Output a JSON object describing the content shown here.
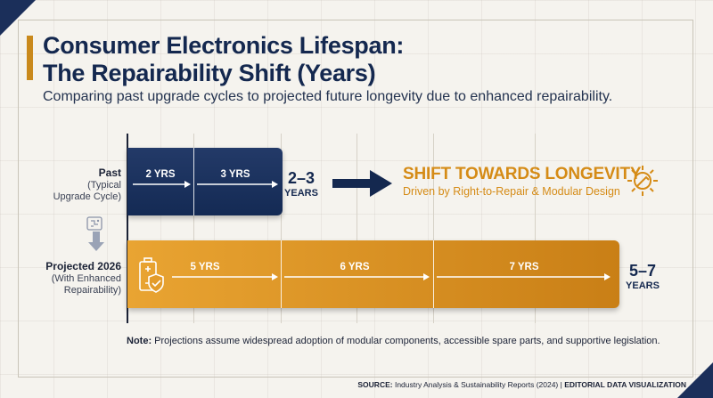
{
  "header": {
    "title_line1": "Consumer Electronics Lifespan:",
    "title_line2": "The Repairability Shift (Years)",
    "subtitle": "Comparing past upgrade cycles to projected future longevity due to enhanced repairability."
  },
  "rows": {
    "past": {
      "label": "Past",
      "sublabel_line1": "(Typical",
      "sublabel_line2": "Upgrade Cycle)",
      "range": "2–3",
      "range_unit": "YEARS"
    },
    "projected": {
      "label": "Projected 2026",
      "sublabel_line1": "(With Enhanced",
      "sublabel_line2": "Repairability)",
      "range": "5–7",
      "range_unit": "YEARS"
    }
  },
  "callout": {
    "title": "SHIFT TOWARDS LONGEVITY",
    "subtitle": "Driven by Right-to-Repair & Modular Design"
  },
  "footer": {
    "note_label": "Note:",
    "note_text": " Projections assume widespread adoption of modular components, accessible spare parts, and supportive legislation.",
    "source_label": "SOURCE:",
    "source_text": " Industry Analysis & Sustainability Reports (2024) | ",
    "source_tag": "EDITORIAL DATA VISUALIZATION"
  },
  "colors": {
    "navy": "#1b2f5a",
    "gold": "#d58b16"
  },
  "icons": [
    "gear-icon",
    "battery-shield-icon",
    "circuit-arrow-icon",
    "right-arrow-icon"
  ],
  "chart_data": {
    "type": "bar",
    "title": "Consumer Electronics Lifespan: The Repairability Shift (Years)",
    "subtitle": "Comparing past upgrade cycles to projected future longevity due to enhanced repairability.",
    "categories": [
      "Past (Typical Upgrade Cycle)",
      "Projected 2026 (With Enhanced Repairability)"
    ],
    "series": [
      {
        "category": "Past (Typical Upgrade Cycle)",
        "ticks": [
          "2 YRS",
          "3 YRS"
        ],
        "tick_values": [
          2,
          3
        ],
        "range": [
          2,
          3
        ],
        "color": "#1b2f5a"
      },
      {
        "category": "Projected 2026 (With Enhanced Repairability)",
        "ticks": [
          "5 YRS",
          "6 YRS",
          "7 YRS"
        ],
        "tick_values": [
          5,
          6,
          7
        ],
        "range": [
          5,
          7
        ],
        "color": "#d58b16"
      }
    ],
    "xlim": [
      0,
      7
    ]
  }
}
